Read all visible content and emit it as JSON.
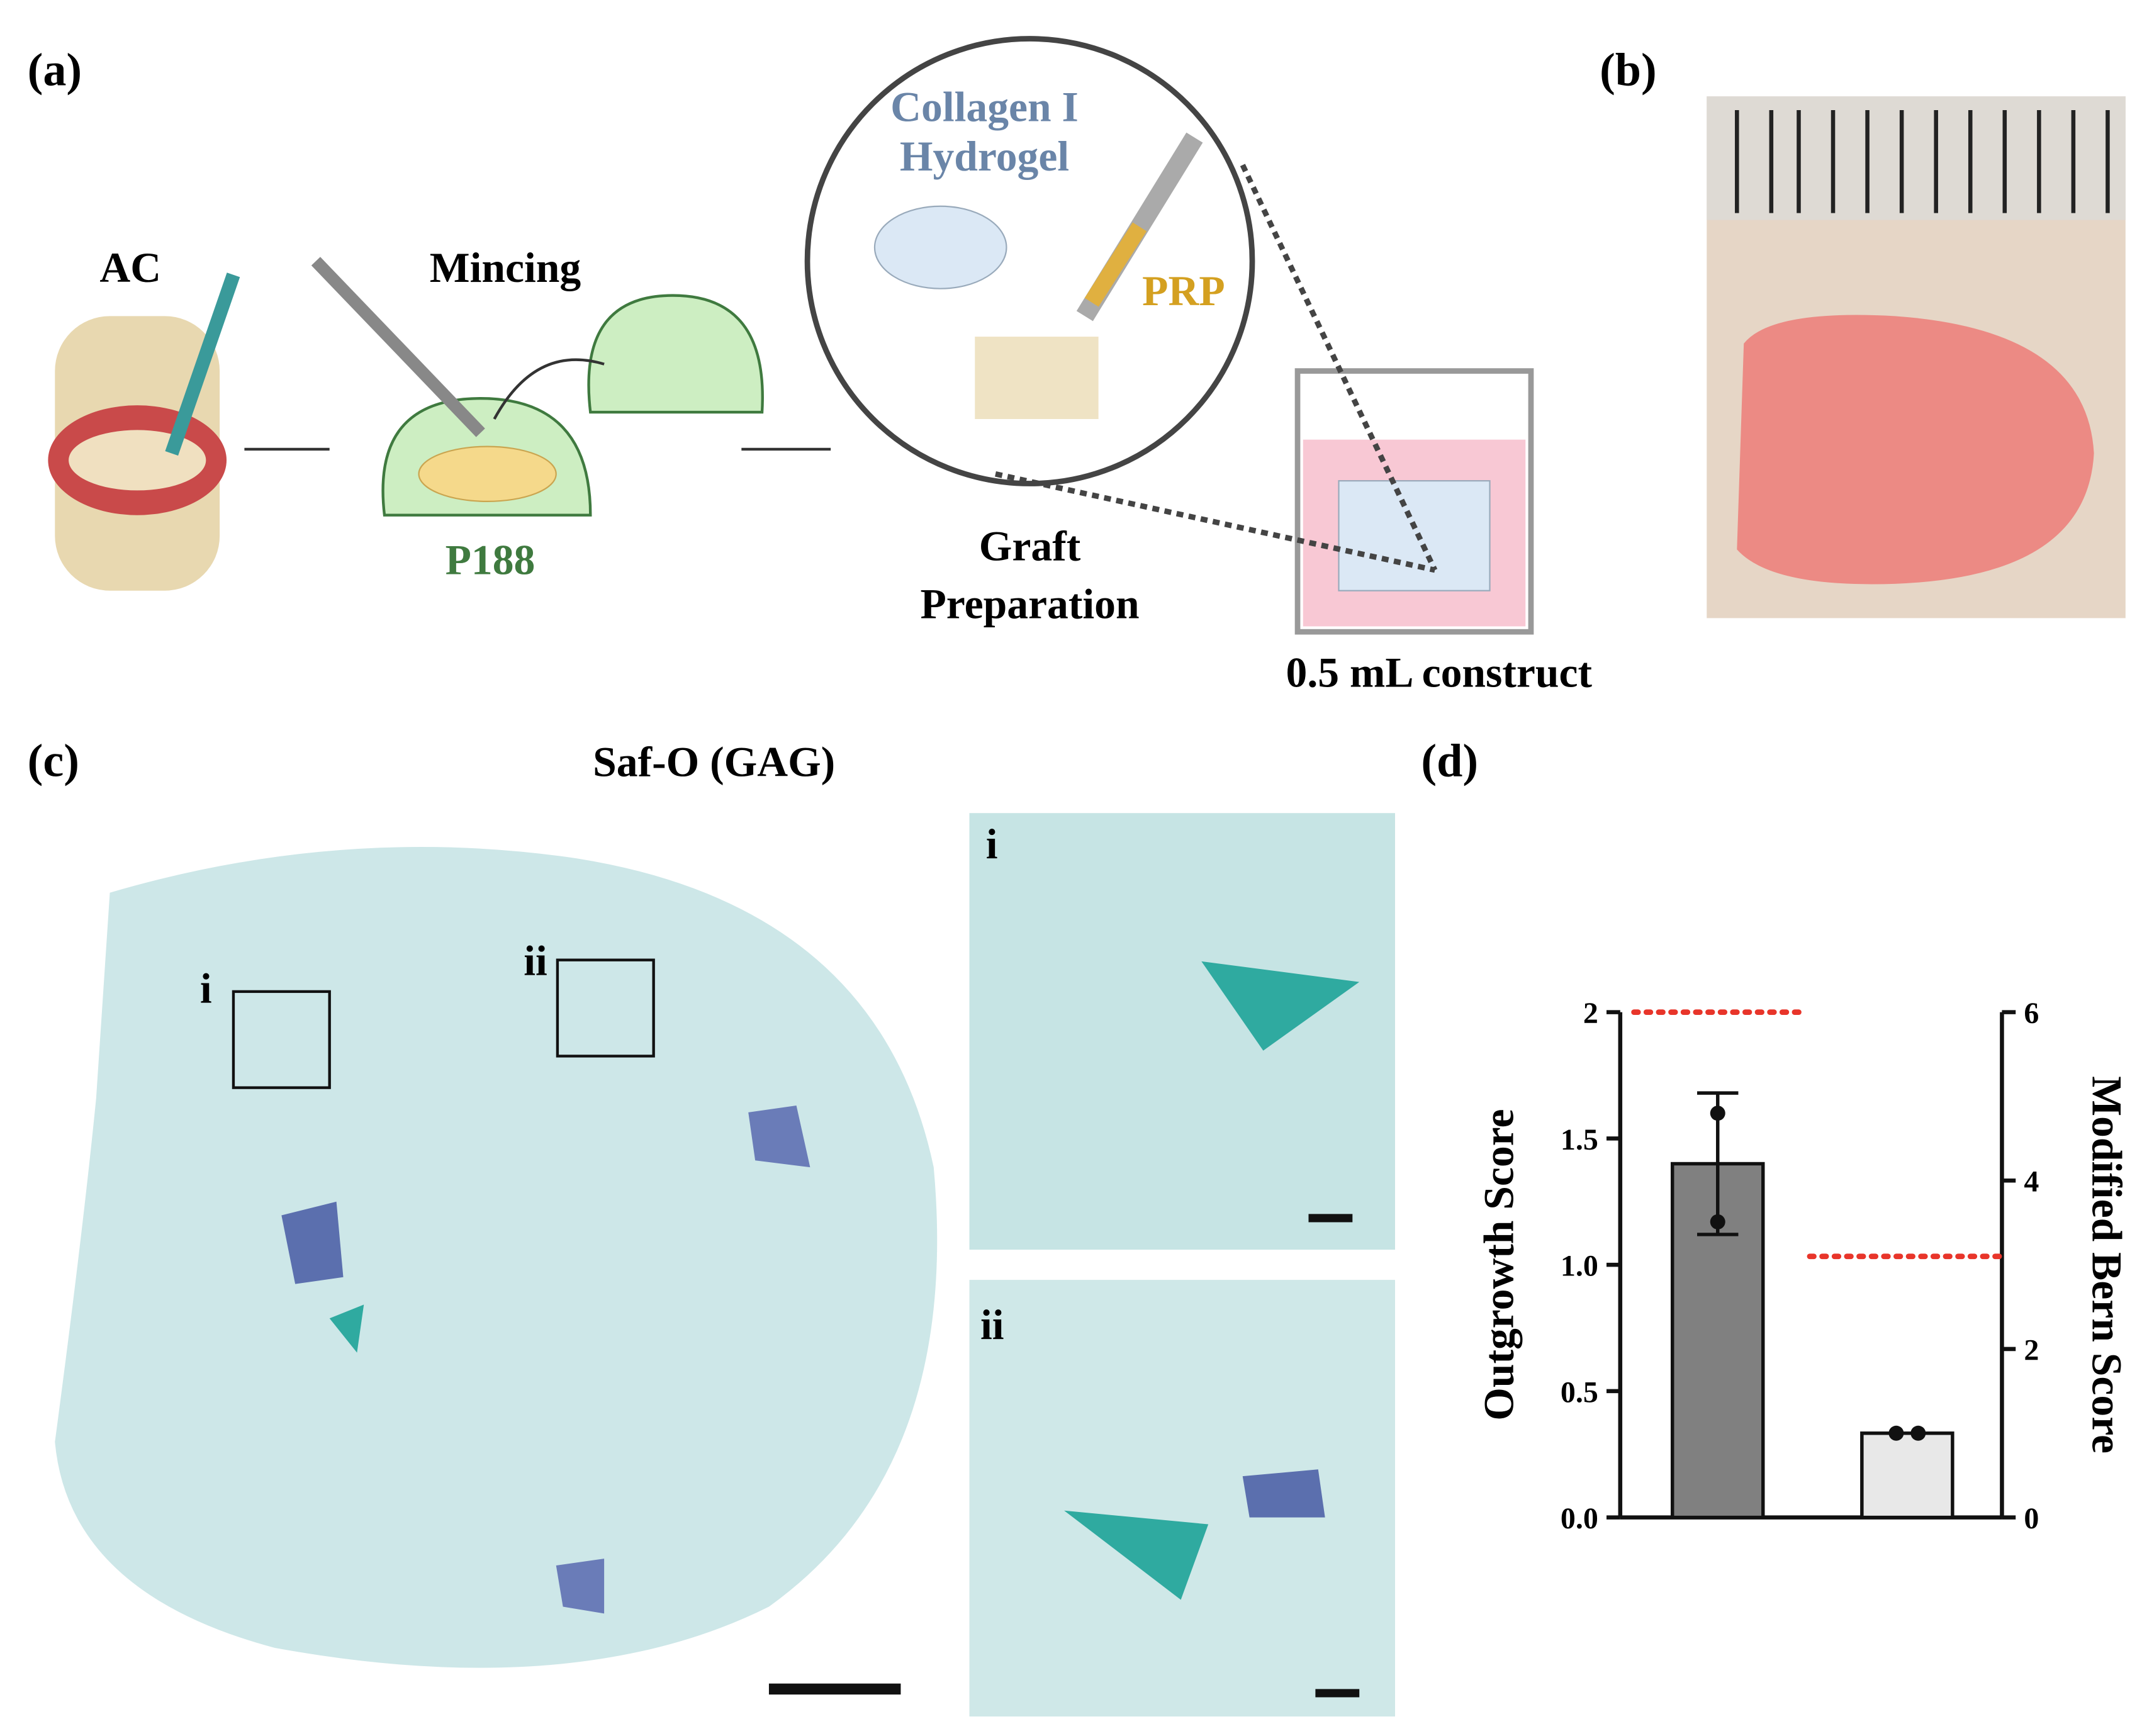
{
  "panels": {
    "a": {
      "label": "(a)",
      "ac": "AC",
      "mincing": "Mincing",
      "p188": "P188",
      "hydrogel": [
        "Collagen I",
        "Hydrogel"
      ],
      "prp": "PRP",
      "graft": [
        "Graft",
        "Preparation"
      ],
      "construct": "0.5 mL construct"
    },
    "b": {
      "label": "(b)"
    },
    "c": {
      "label": "(c)",
      "title": "Saf-O (GAG)",
      "box_labels": [
        "i",
        "ii"
      ],
      "inset_labels": [
        "i",
        "ii"
      ]
    },
    "d": {
      "label": "(d)"
    }
  },
  "chart_data": {
    "type": "bar",
    "ylabel": "Outgrowth Score",
    "y2label": "Modified Bern Score",
    "categories": [
      null,
      null
    ],
    "bars": [
      {
        "axis": "y",
        "value": 1.4,
        "error": 0.28,
        "points": [
          1.6,
          1.17
        ],
        "color": "#808080"
      },
      {
        "axis": "y2",
        "value": 1,
        "points": [
          1,
          1
        ],
        "color": "#e8e8e8"
      }
    ],
    "reference_lines": [
      {
        "axis": "y",
        "value": 2,
        "color": "#e8352a"
      },
      {
        "axis": "y2",
        "value": 3.1,
        "color": "#e8352a"
      }
    ],
    "ylim": [
      0,
      2
    ],
    "yticks": [
      {
        "value": 0,
        "label": "0.0"
      },
      0.5,
      {
        "value": 1,
        "label": "1.0"
      },
      1.5,
      2
    ],
    "y2lim": [
      0,
      6
    ],
    "y2ticks": [
      0,
      2,
      4,
      6
    ]
  }
}
